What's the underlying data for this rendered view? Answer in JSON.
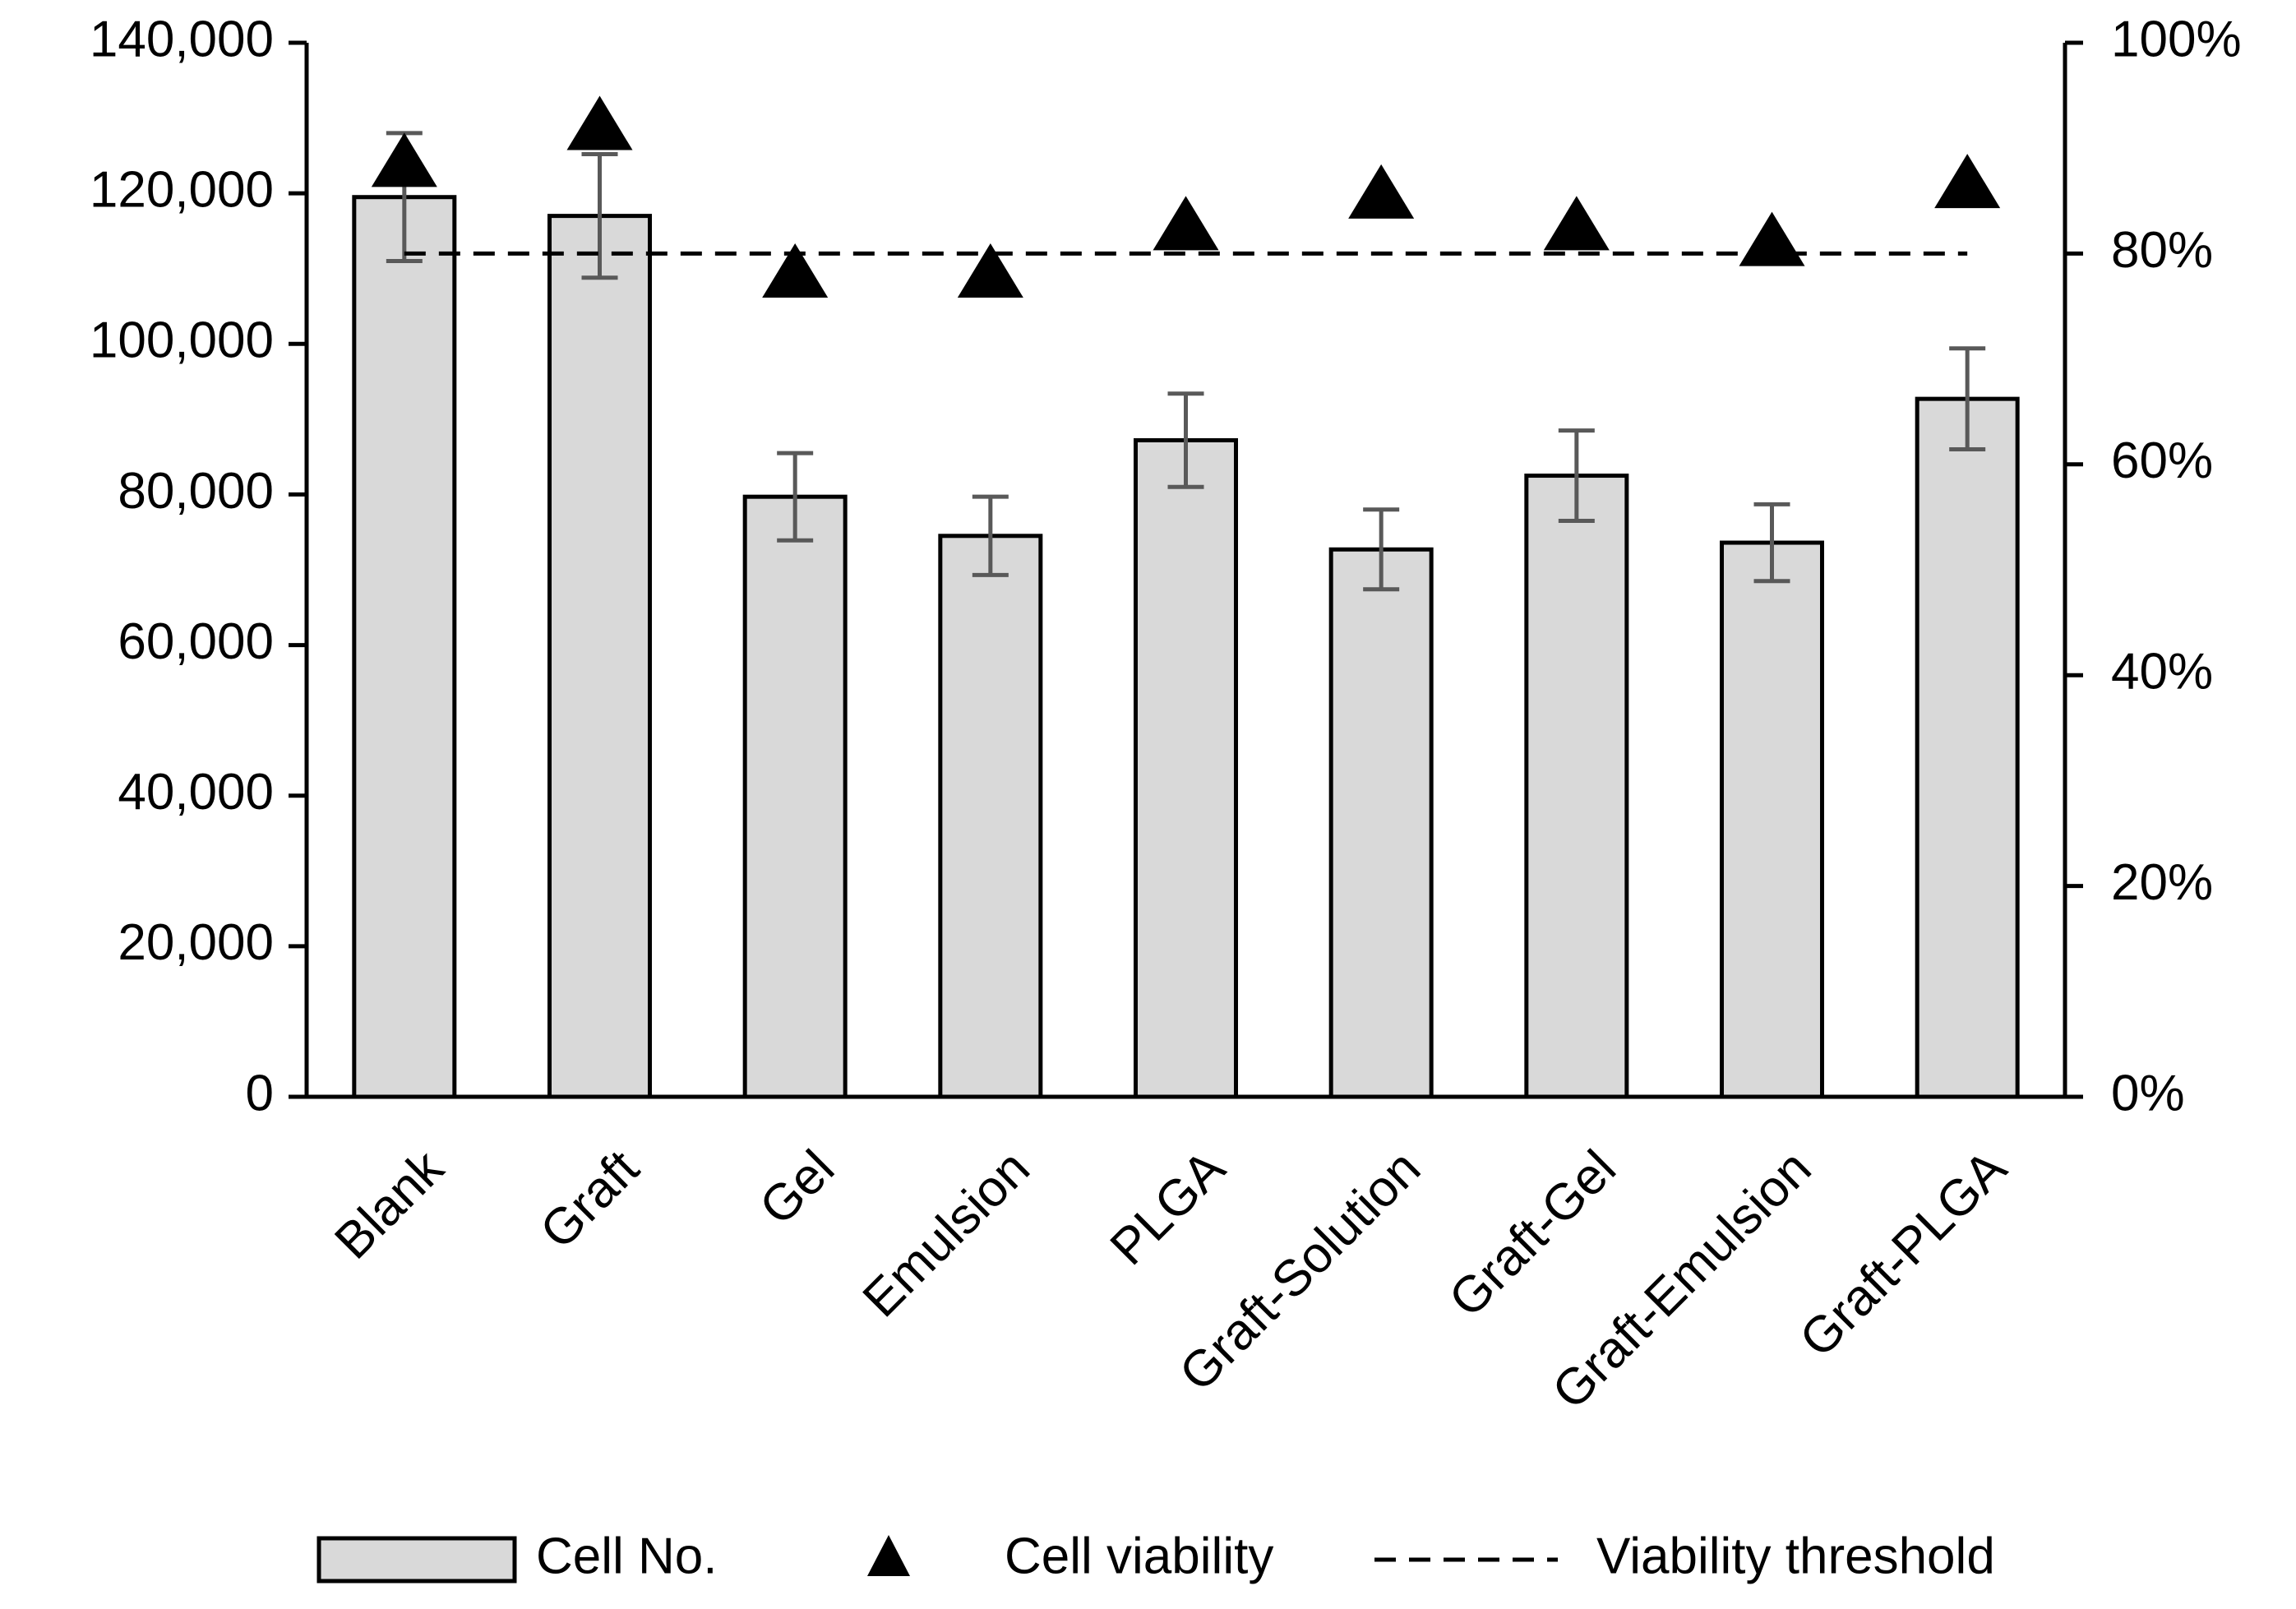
{
  "chart_data": {
    "type": "bar",
    "title": "",
    "xlabel": "",
    "ylabel": "",
    "categories": [
      "Blank",
      "Graft",
      "Gel",
      "Emulsion",
      "PLGA",
      "Graft-Solution",
      "Graft-Gel",
      "Graft-Emulsion",
      "Graft-PLGA"
    ],
    "series": [
      {
        "name": "Cell No.",
        "axis": "left",
        "kind": "bar",
        "values": [
          119500,
          117000,
          79700,
          74500,
          87200,
          72700,
          82500,
          73600,
          92700
        ],
        "error": [
          8500,
          8200,
          5800,
          5200,
          6200,
          5300,
          6000,
          5100,
          6700
        ]
      },
      {
        "name": "Cell viability",
        "axis": "right",
        "kind": "marker",
        "values": [
          0.885,
          0.92,
          0.78,
          0.78,
          0.825,
          0.855,
          0.825,
          0.81,
          0.865
        ]
      },
      {
        "name": "Viability threshold",
        "axis": "right",
        "kind": "line",
        "value": 0.8
      }
    ],
    "left_axis": {
      "ylim": [
        0,
        140000
      ],
      "ticks": [
        0,
        20000,
        40000,
        60000,
        80000,
        100000,
        120000,
        140000
      ],
      "tick_labels": [
        "0",
        "20,000",
        "40,000",
        "60,000",
        "80,000",
        "100,000",
        "120,000",
        "140,000"
      ]
    },
    "right_axis": {
      "ylim": [
        0,
        1
      ],
      "ticks": [
        0,
        0.2,
        0.4,
        0.6,
        0.8,
        1.0
      ],
      "tick_labels": [
        "0%",
        "20%",
        "40%",
        "60%",
        "80%",
        "100%"
      ]
    },
    "legend": {
      "position": "bottom",
      "entries": [
        "Cell No.",
        "Cell viability",
        "Viability threshold"
      ]
    },
    "grid": false,
    "colors": {
      "bar_fill": "#d9d9d9",
      "bar_stroke": "#000000",
      "error_bar": "#595959",
      "marker": "#000000",
      "threshold": "#000000"
    }
  }
}
